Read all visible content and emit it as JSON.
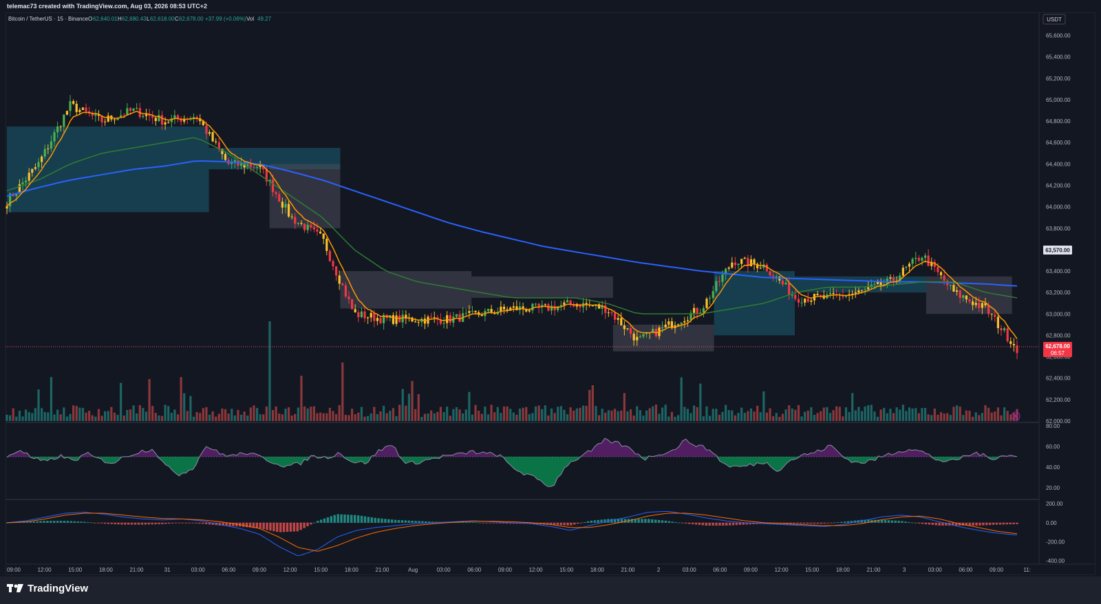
{
  "header": {
    "credit": "telemac73 created with TradingView.com, Aug 03, 2026 08:53 UTC+2"
  },
  "legend": {
    "symbol": "Bitcoin / TetherUS · 15 · Binance",
    "o_label": "O",
    "o": "62,640.01",
    "h_label": "H",
    "h": "62,680.43",
    "l_label": "L",
    "l": "62,618.00",
    "c_label": "C",
    "c": "62,678.00",
    "change": "+37.99 (+0.06%)",
    "vol_label": "Vol",
    "vol": "49.27"
  },
  "currency_badge": "USDT",
  "price_axis": {
    "ticks": [
      "65,600.00",
      "65,400.00",
      "65,200.00",
      "65,000.00",
      "64,800.00",
      "64,600.00",
      "64,400.00",
      "64,200.00",
      "64,000.00",
      "63,800.00",
      "63,600.00",
      "63,400.00",
      "63,200.00",
      "63,000.00",
      "62,800.00",
      "62,600.00",
      "62,400.00",
      "62,200.00",
      "62,000.00"
    ],
    "marker_ma": "63,570.00",
    "marker_last": "62,678.00",
    "marker_countdown": "06:57"
  },
  "rsi_axis": {
    "ticks": [
      "80.00",
      "60.00",
      "40.00",
      "20.00"
    ]
  },
  "macd_axis": {
    "ticks": [
      "200.00",
      "0.00",
      "-200.00",
      "-400.00"
    ]
  },
  "time_axis": {
    "labels": [
      "09:00",
      "12:00",
      "15:00",
      "18:00",
      "21:00",
      "31",
      "03:00",
      "06:00",
      "09:00",
      "12:00",
      "15:00",
      "18:00",
      "21:00",
      "Aug",
      "03:00",
      "06:00",
      "09:00",
      "12:00",
      "15:00",
      "18:00",
      "21:00",
      "2",
      "03:00",
      "06:00",
      "09:00",
      "12:00",
      "15:00",
      "18:00",
      "21:00",
      "3",
      "03:00",
      "06:00",
      "09:00",
      "11:"
    ]
  },
  "colors": {
    "bg": "#131722",
    "up": "#26a69a",
    "down": "#ef5350",
    "bull_bar": "#4caf50",
    "bear_bar": "#f23645",
    "yellow_bar": "#fbc02d",
    "ema_fast": "#ff9800",
    "ma_mid": "#2e7d32",
    "ma_slow": "#2962ff",
    "cloud_teal": "#1b5e73",
    "cloud_gray": "#4a4d5a",
    "rsi_line": "#8a8fa3",
    "rsi_purple": "#9c27b0",
    "rsi_green": "#00e676",
    "macd_line": "#2962ff",
    "signal_line": "#ff6d00"
  },
  "brand": "TradingView",
  "chart_data": {
    "type": "line",
    "symbol": "BTCUSDT",
    "interval": "15",
    "ylim": [
      62000,
      65700
    ],
    "x": [
      "Jul 30 09:00",
      "Jul 30 12:00",
      "Jul 30 15:00",
      "Jul 30 18:00",
      "Jul 30 21:00",
      "Jul 31 00:00",
      "Jul 31 03:00",
      "Jul 31 06:00",
      "Jul 31 09:00",
      "Jul 31 12:00",
      "Jul 31 15:00",
      "Jul 31 18:00",
      "Jul 31 21:00",
      "Aug 1 00:00",
      "Aug 1 03:00",
      "Aug 1 06:00",
      "Aug 1 09:00",
      "Aug 1 12:00",
      "Aug 1 15:00",
      "Aug 1 18:00",
      "Aug 1 21:00",
      "Aug 2 00:00",
      "Aug 2 03:00",
      "Aug 2 06:00",
      "Aug 2 09:00",
      "Aug 2 12:00",
      "Aug 2 15:00",
      "Aug 2 18:00",
      "Aug 2 21:00",
      "Aug 3 00:00",
      "Aug 3 03:00",
      "Aug 3 06:00",
      "Aug 3 08:45"
    ],
    "series": [
      {
        "values": [
          64050,
          64400,
          64950,
          64800,
          64900,
          64800,
          64850,
          64400,
          64380,
          63900,
          63700,
          63000,
          62950,
          62950,
          62950,
          63000,
          63050,
          63050,
          63100,
          63050,
          62750,
          62900,
          63050,
          63500,
          63450,
          63150,
          63150,
          63200,
          63300,
          63550,
          63200,
          63050,
          62678
        ]
      },
      {
        "values": [
          64150,
          64250,
          64400,
          64500,
          64550,
          64600,
          64650,
          64500,
          64300,
          64100,
          63900,
          63600,
          63400,
          63300,
          63250,
          63200,
          63150,
          63150,
          63150,
          63100,
          63000,
          63000,
          63000,
          63050,
          63100,
          63200,
          63250,
          63250,
          63270,
          63300,
          63300,
          63200,
          63150
        ]
      },
      {
        "values": [
          64100,
          64180,
          64250,
          64300,
          64350,
          64380,
          64430,
          64420,
          64400,
          64330,
          64250,
          64150,
          64050,
          63950,
          63850,
          63770,
          63700,
          63630,
          63580,
          63530,
          63480,
          63440,
          63400,
          63370,
          63340,
          63330,
          63320,
          63310,
          63300,
          63300,
          63290,
          63280,
          63260
        ]
      }
    ],
    "volume_spikes": [
      {
        "x": "Jul 31 09:00",
        "value": "spike"
      },
      {
        "x": "Jul 31 16:00",
        "value": "spike"
      }
    ],
    "rsi": {
      "ylim": [
        10,
        82
      ],
      "values": [
        50,
        57,
        48,
        45,
        51,
        46,
        53,
        47,
        44,
        51,
        55,
        58,
        40,
        33,
        39,
        61,
        53,
        51,
        54,
        50,
        45,
        41,
        43,
        51,
        49,
        54,
        45,
        44,
        56,
        62,
        43,
        45,
        48,
        51,
        52,
        55,
        53,
        52,
        40,
        33,
        28,
        20,
        41,
        49,
        56,
        66,
        63,
        57,
        48,
        53,
        55,
        66,
        61,
        56,
        42,
        40,
        42,
        45,
        37,
        47,
        52,
        55,
        61,
        49,
        44,
        46,
        51,
        55,
        58,
        54,
        47,
        45,
        50,
        54,
        48,
        52,
        50
      ]
    },
    "macd": {
      "ylim": [
        -420,
        230
      ],
      "macd": [
        0,
        20,
        60,
        100,
        110,
        90,
        60,
        40,
        30,
        40,
        20,
        -20,
        -60,
        -120,
        -250,
        -350,
        -280,
        -150,
        -80,
        -50,
        -30,
        -10,
        0,
        10,
        20,
        10,
        0,
        -10,
        -40,
        -80,
        -30,
        20,
        60,
        110,
        120,
        90,
        50,
        20,
        0,
        -10,
        -20,
        -30,
        -40,
        -20,
        20,
        60,
        80,
        60,
        10,
        -40,
        -80,
        -110,
        -130
      ],
      "signal": [
        0,
        10,
        40,
        80,
        100,
        100,
        80,
        60,
        45,
        40,
        30,
        10,
        -20,
        -60,
        -150,
        -260,
        -300,
        -240,
        -160,
        -100,
        -60,
        -30,
        -10,
        5,
        15,
        15,
        10,
        0,
        -20,
        -50,
        -50,
        -20,
        20,
        70,
        100,
        100,
        80,
        50,
        20,
        0,
        -10,
        -20,
        -30,
        -30,
        -10,
        30,
        60,
        70,
        40,
        -10,
        -50,
        -90,
        -115
      ]
    }
  }
}
